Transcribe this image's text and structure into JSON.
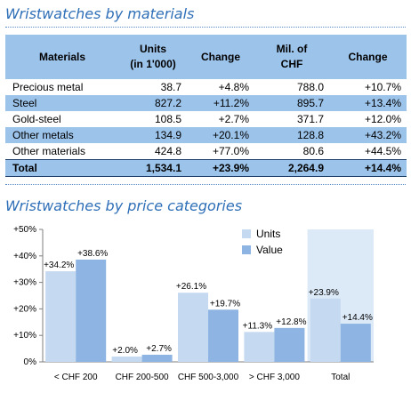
{
  "table_section": {
    "title": "Wristwatches by materials",
    "headers": [
      "Materials",
      "Units\n(in 1'000)",
      "Change",
      "Mil. of\nCHF",
      "Change"
    ],
    "rows": [
      [
        "Precious metal",
        "38.7",
        "+4.8%",
        "788.0",
        "+10.7%"
      ],
      [
        "Steel",
        "827.2",
        "+11.2%",
        "895.7",
        "+13.4%"
      ],
      [
        "Gold-steel",
        "108.5",
        "+2.7%",
        "371.7",
        "+12.0%"
      ],
      [
        "Other metals",
        "134.9",
        "+20.1%",
        "128.8",
        "+43.2%"
      ],
      [
        "Other materials",
        "424.8",
        "+77.0%",
        "80.6",
        "+44.5%"
      ]
    ],
    "total": [
      "Total",
      "1,534.1",
      "+23.9%",
      "2,264.9",
      "+14.4%"
    ]
  },
  "chart_section": {
    "title": "Wristwatches by price categories"
  },
  "chart_data": {
    "type": "bar",
    "categories": [
      "< CHF 200",
      "CHF 200-500",
      "CHF 500-3,000",
      "> CHF 3,000",
      "Total"
    ],
    "series": [
      {
        "name": "Units",
        "values": [
          34.2,
          2.0,
          26.1,
          11.3,
          23.9
        ],
        "labels": [
          "+34.2%",
          "+2.0%",
          "+26.1%",
          "+11.3%",
          "+23.9%"
        ],
        "color": "#c5d9f1"
      },
      {
        "name": "Value",
        "values": [
          38.6,
          2.7,
          19.7,
          12.8,
          14.4
        ],
        "labels": [
          "+38.6%",
          "+2.7%",
          "+19.7%",
          "+12.8%",
          "+14.4%"
        ],
        "color": "#8db4e2"
      }
    ],
    "ylim": [
      0,
      50
    ],
    "yticks": [
      "0%",
      "+10%",
      "+20%",
      "+30%",
      "+40%",
      "+50%"
    ],
    "highlight_category": "Total",
    "highlight_color": "#dce9f7",
    "legend_position": "top-right",
    "grid": false
  }
}
